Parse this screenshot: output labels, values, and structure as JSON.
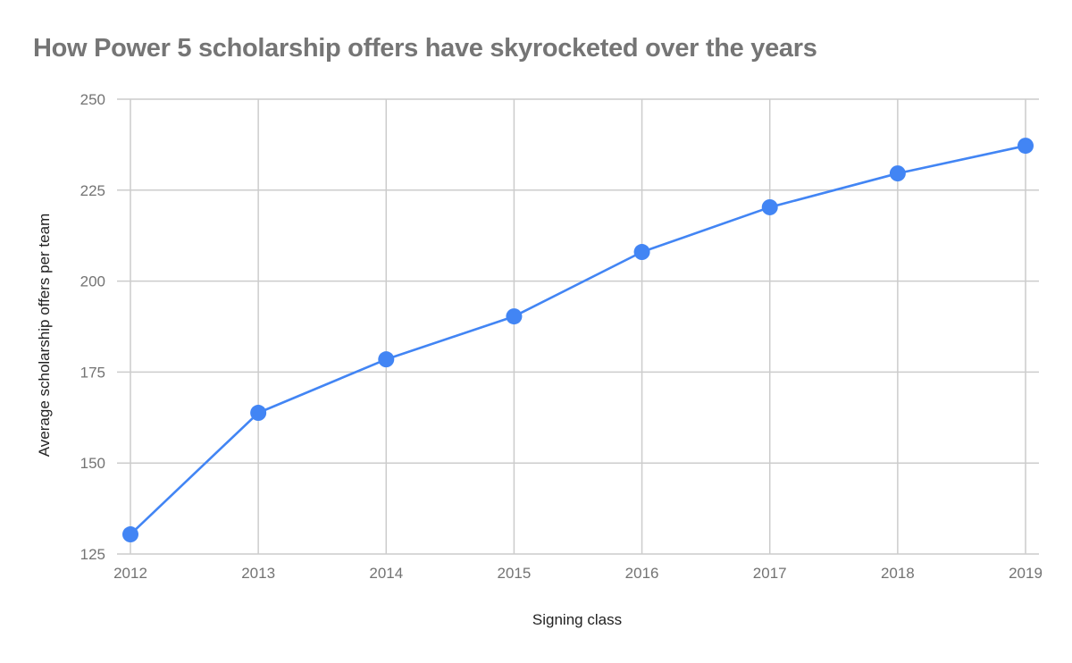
{
  "chart_data": {
    "type": "line",
    "title": "How Power 5 scholarship offers have skyrocketed over the years",
    "xlabel": "Signing class",
    "ylabel": "Average scholarship offers per team",
    "categories": [
      "2012",
      "2013",
      "2014",
      "2015",
      "2016",
      "2017",
      "2018",
      "2019"
    ],
    "series": [
      {
        "name": "Average scholarship offers per team",
        "values": [
          130.4,
          163.8,
          178.5,
          190.3,
          208.0,
          220.3,
          229.6,
          237.2
        ],
        "color": "#4285F4"
      }
    ],
    "yticks": [
      "125",
      "150",
      "175",
      "200",
      "225",
      "250"
    ],
    "ylim": [
      125,
      250
    ],
    "grid": true,
    "legend": "none"
  }
}
